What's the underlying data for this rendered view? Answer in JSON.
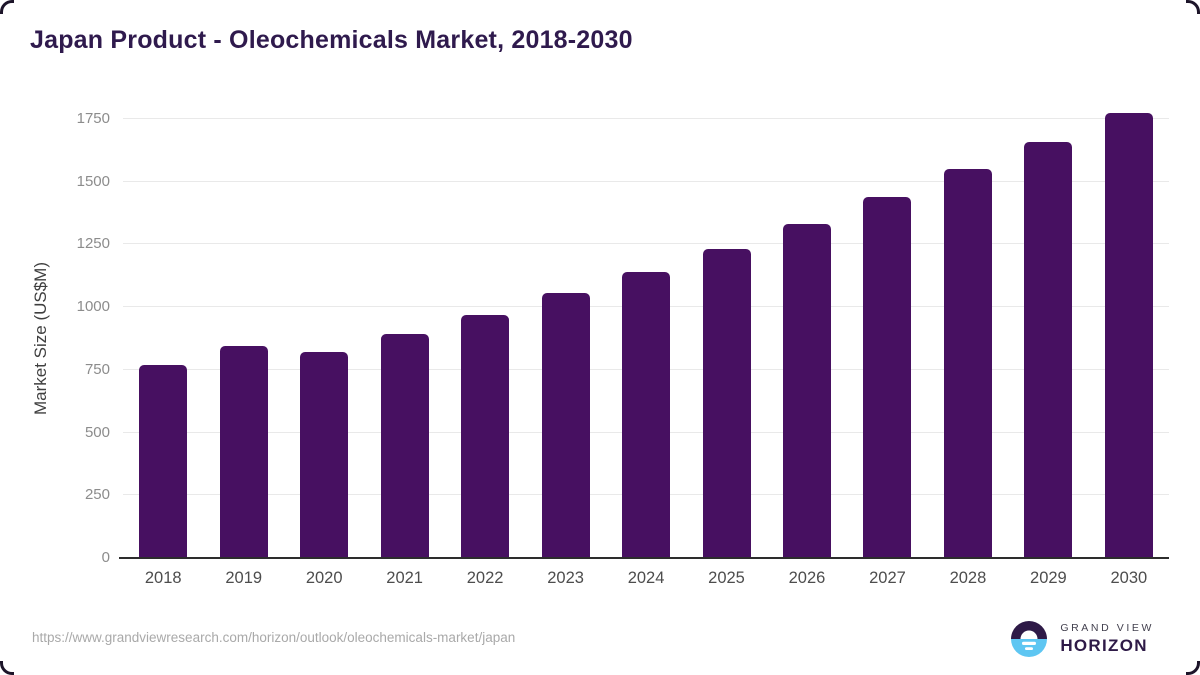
{
  "page": {
    "title": "Japan Product - Oleochemicals Market, 2018-2030",
    "source_url": "https://www.grandviewresearch.com/horizon/outlook/oleochemicals-market/japan"
  },
  "branding": {
    "name_top": "GRAND VIEW",
    "name_bottom": "HORIZON"
  },
  "colors": {
    "bar": "#471061",
    "title": "#2f1a4d",
    "axis_line": "#2d2d2d",
    "gridline": "#e9e9e9",
    "tick_label": "#8c8c8c",
    "x_label": "#4d4d4d",
    "axis_title": "#3f3f3f",
    "url_text": "#a9a9a9",
    "logo_dark": "#2e1a47",
    "logo_blue": "#5ec6f2"
  },
  "chart_data": {
    "type": "bar",
    "title": "Japan Product - Oleochemicals Market, 2018-2030",
    "categories": [
      "2018",
      "2019",
      "2020",
      "2021",
      "2022",
      "2023",
      "2024",
      "2025",
      "2026",
      "2027",
      "2028",
      "2029",
      "2030"
    ],
    "values": [
      770,
      845,
      822,
      895,
      970,
      1055,
      1140,
      1230,
      1330,
      1440,
      1550,
      1660,
      1775
    ],
    "xlabel": "",
    "ylabel": "Market Size (US$M)",
    "ylim": [
      0,
      1750
    ],
    "yticks": [
      0,
      250,
      500,
      750,
      1000,
      1250,
      1500,
      1750
    ],
    "grid": "horizontal",
    "legend": "none",
    "bar_color": "#471061"
  }
}
